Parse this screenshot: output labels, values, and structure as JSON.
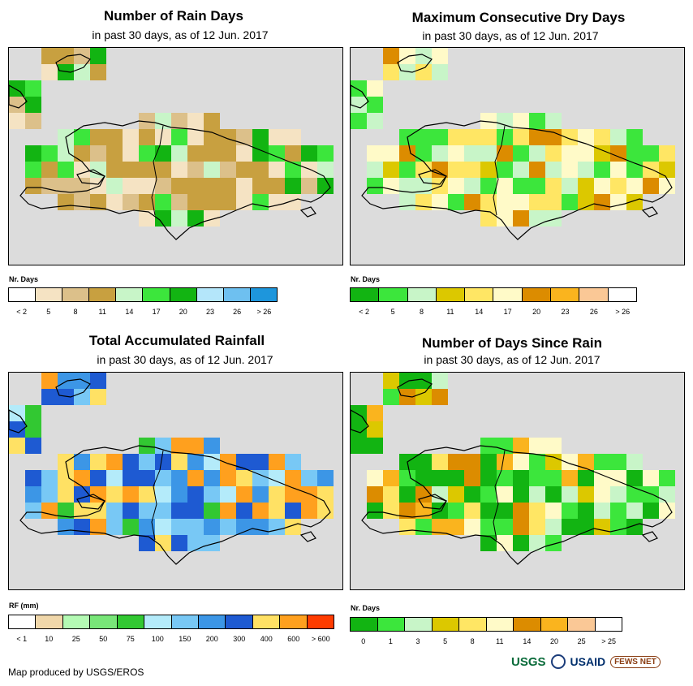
{
  "panels": [
    {
      "title": "Number of Rain Days",
      "subtitle": "in past 30 days, as of 12 Jun. 2017",
      "legend_title": "Nr. Days",
      "legend_labels": [
        "< 2",
        "5",
        "8",
        "11",
        "14",
        "17",
        "20",
        "23",
        "26",
        "> 26"
      ],
      "legend_colors": [
        "#ffffff",
        "#f5e3c3",
        "#dcc08a",
        "#c8a040",
        "#c8f5c8",
        "#3ce63c",
        "#12b412",
        "#b4e6fa",
        "#6ec0f0",
        "#1e96dc"
      ]
    },
    {
      "title": "Maximum Consecutive Dry Days",
      "subtitle": "in past 30 days, as of 12 Jun. 2017",
      "legend_title": "Nr. Days",
      "legend_labels": [
        "< 2",
        "5",
        "8",
        "11",
        "14",
        "17",
        "20",
        "23",
        "26",
        "> 26"
      ],
      "legend_colors": [
        "#12b412",
        "#3ce63c",
        "#c8f5c8",
        "#dcc800",
        "#ffe664",
        "#fffac8",
        "#dc8c00",
        "#fab41e",
        "#fac896",
        "#ffffff"
      ]
    },
    {
      "title": "Total Accumulated Rainfall",
      "subtitle": "in past 30 days, as of 12 Jun. 2017",
      "legend_title": "RF (mm)",
      "legend_labels": [
        "< 1",
        "10",
        "25",
        "50",
        "75",
        "100",
        "150",
        "200",
        "300",
        "400",
        "600",
        "> 600"
      ],
      "legend_colors": [
        "#ffffff",
        "#f0d7aa",
        "#b4fab4",
        "#78e678",
        "#32c832",
        "#b4ebfa",
        "#78c8f5",
        "#3c96e6",
        "#1e5ad2",
        "#ffe164",
        "#ffa01e",
        "#ff3c00"
      ]
    },
    {
      "title": "Number of Days Since Rain",
      "subtitle": "in past 30 days, as of 12 Jun. 2017",
      "legend_title": "Nr. Days",
      "legend_labels": [
        "0",
        "1",
        "3",
        "5",
        "8",
        "11",
        "14",
        "20",
        "25",
        "> 25"
      ],
      "legend_colors": [
        "#12b412",
        "#3ce63c",
        "#c8f5c8",
        "#dcc800",
        "#ffe664",
        "#fffac8",
        "#dc8c00",
        "#fab41e",
        "#fac896",
        "#ffffff"
      ]
    }
  ],
  "credit": "Map produced by USGS/EROS",
  "logos": {
    "usgs": "USGS",
    "usaid": "USAID",
    "fews": "FEWS NET"
  }
}
